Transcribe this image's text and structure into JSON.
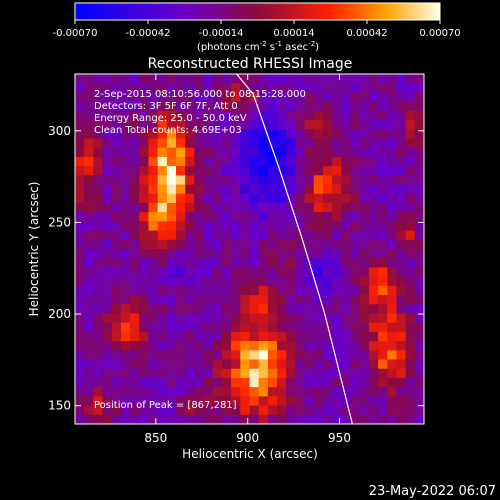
{
  "colorbar": {
    "ticks": [
      "-0.00070",
      "-0.00042",
      "-0.00014",
      "0.00014",
      "0.00042",
      "0.00070"
    ],
    "units_main": "(photons cm",
    "units_exp1": "-2",
    "units_mid": " s",
    "units_exp2": "-1",
    "units_end": " asec",
    "units_exp3": "-2",
    "units_close": ")"
  },
  "chart_data": {
    "type": "heatmap",
    "title": "Reconstructed RHESSI Image",
    "xlabel": "Heliocentric X (arcsec)",
    "ylabel": "Heliocentric Y (arcsec)",
    "x_ticks": [
      "850",
      "900",
      "950"
    ],
    "y_ticks": [
      "150",
      "200",
      "250",
      "300"
    ],
    "xlim": [
      806,
      996
    ],
    "ylim": [
      140,
      331
    ],
    "colorbar_range": [
      -0.0007,
      0.0007
    ],
    "annotations": [
      "2-Sep-2015 08:10:56.000 to 08:15:28.000",
      "Detectors: 3F 5F 6F 7F, Att 0",
      "Energy Range: 25.0 - 50.0 keV",
      "Clean     Total counts: 4.69E+03"
    ],
    "peak_label": "Position of Peak = [867,281]",
    "limb_points": [
      [
        894,
        331
      ],
      [
        903,
        320
      ],
      [
        917,
        280
      ],
      [
        930,
        240
      ],
      [
        942,
        200
      ],
      [
        952,
        160
      ],
      [
        957,
        140
      ]
    ]
  },
  "footer": {
    "date": "23-May-2022 06:07"
  }
}
